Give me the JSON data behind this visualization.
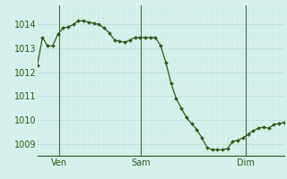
{
  "bg_color": "#d6f0eb",
  "grid_color": "#b8dbd4",
  "line_color": "#2d5a1b",
  "marker_color": "#2d5a1b",
  "ylim": [
    1008.5,
    1014.8
  ],
  "yticks": [
    1009,
    1010,
    1011,
    1012,
    1013,
    1014
  ],
  "xtick_labels": [
    "Ven",
    "Sam",
    "Dim"
  ],
  "xtick_positions": [
    0.09,
    0.42,
    0.845
  ],
  "vline_positions": [
    0.09,
    0.42,
    0.845
  ],
  "y_values": [
    1012.3,
    1013.45,
    1013.1,
    1013.1,
    1013.6,
    1013.85,
    1013.9,
    1014.0,
    1014.15,
    1014.15,
    1014.1,
    1014.05,
    1014.0,
    1013.85,
    1013.65,
    1013.35,
    1013.3,
    1013.25,
    1013.35,
    1013.45,
    1013.45,
    1013.45,
    1013.45,
    1013.45,
    1013.1,
    1012.4,
    1011.55,
    1010.9,
    1010.5,
    1010.1,
    1009.85,
    1009.6,
    1009.25,
    1008.85,
    1008.75,
    1008.75,
    1008.75,
    1008.8,
    1009.1,
    1009.15,
    1009.25,
    1009.4,
    1009.55,
    1009.65,
    1009.7,
    1009.65,
    1009.8,
    1009.85,
    1009.9
  ],
  "tick_fontsize": 7,
  "tick_color": "#2d5a1b",
  "spine_color": "#2d5a1b",
  "minor_grid_color": "#c8e8e0"
}
